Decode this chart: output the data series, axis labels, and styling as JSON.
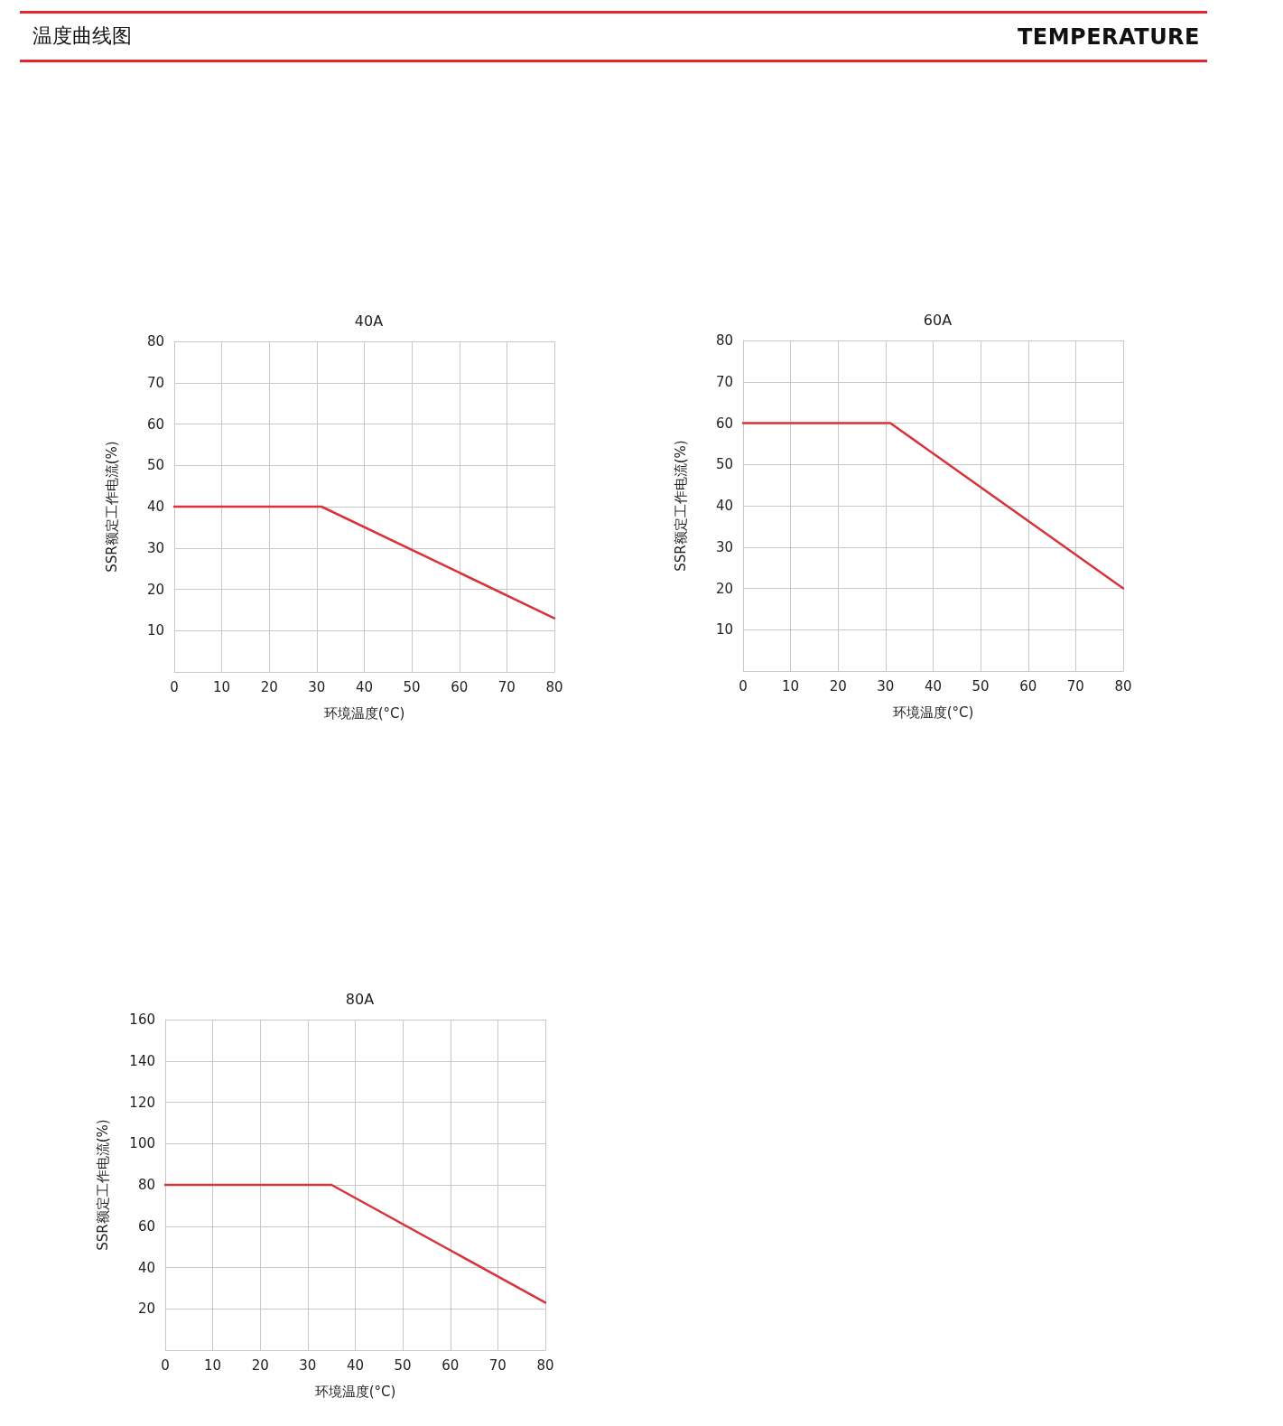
{
  "chart_data": [
    {
      "type": "other",
      "title": "温度曲线图",
      "subtitle": "TEMPERATURE"
    },
    {
      "type": "line",
      "title": "40A",
      "xlabel": "环境温度(°C)",
      "ylabel": "SSR额定工作电流(%)",
      "x": [
        0,
        31,
        80
      ],
      "series": [
        {
          "color": "#d8333b",
          "values": [
            40,
            40,
            13
          ]
        }
      ],
      "xlim": [
        0,
        80
      ],
      "xticks": [
        0,
        10,
        20,
        30,
        40,
        50,
        60,
        70,
        80
      ],
      "ylim": [
        0,
        80
      ],
      "yticks": [
        10,
        20,
        30,
        40,
        50,
        60,
        70,
        80
      ],
      "grid": true,
      "marker": "none",
      "line_style": "solid"
    },
    {
      "type": "line",
      "title": "60A",
      "xlabel": "环境温度(°C)",
      "ylabel": "SSR额定工作电流(%)",
      "x": [
        0,
        31,
        80
      ],
      "series": [
        {
          "color": "#d8333b",
          "values": [
            60,
            60,
            20
          ]
        }
      ],
      "xlim": [
        0,
        80
      ],
      "xticks": [
        0,
        10,
        20,
        30,
        40,
        50,
        60,
        70,
        80
      ],
      "ylim": [
        0,
        80
      ],
      "yticks": [
        10,
        20,
        30,
        40,
        50,
        60,
        70,
        80
      ],
      "grid": true,
      "marker": "none",
      "line_style": "solid"
    },
    {
      "type": "line",
      "title": "80A",
      "xlabel": "环境温度(°C)",
      "ylabel": "SSR额定工作电流(%)",
      "x": [
        0,
        35,
        80
      ],
      "series": [
        {
          "color": "#d8333b",
          "values": [
            80,
            80,
            23
          ]
        }
      ],
      "xlim": [
        0,
        80
      ],
      "xticks": [
        0,
        10,
        20,
        30,
        40,
        50,
        60,
        70,
        80
      ],
      "ylim": [
        0,
        160
      ],
      "yticks": [
        20,
        40,
        60,
        80,
        100,
        120,
        140,
        160
      ],
      "grid": true,
      "marker": "none",
      "line_style": "solid"
    }
  ]
}
